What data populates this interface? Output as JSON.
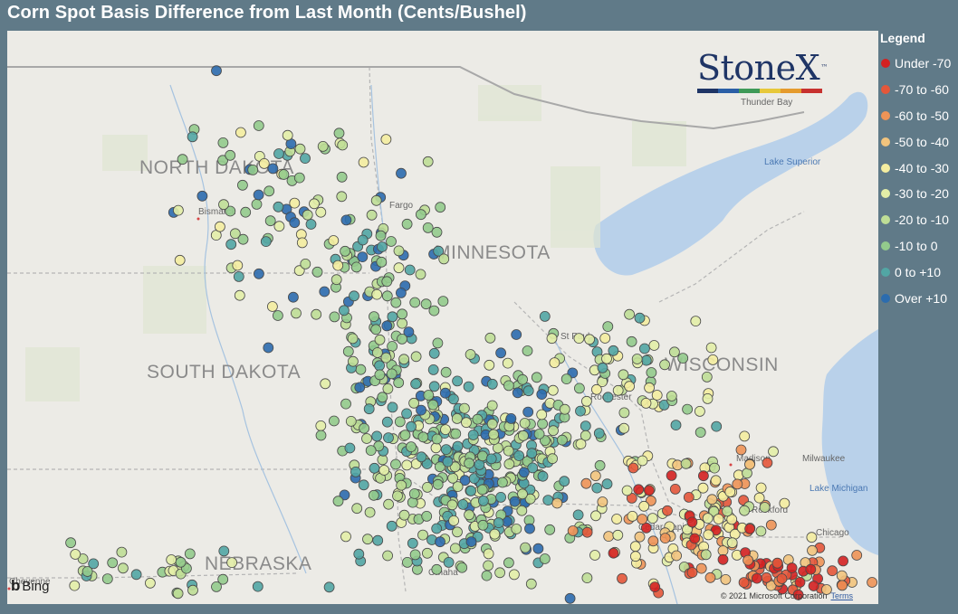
{
  "title": "Corn Spot Basis Difference from Last Month (Cents/Bushel)",
  "legend": {
    "title": "Legend",
    "items": [
      {
        "label": "Under -70",
        "color": "#d42121"
      },
      {
        "label": "-70 to -60",
        "color": "#e4573a"
      },
      {
        "label": "-60 to -50",
        "color": "#ee9457"
      },
      {
        "label": "-50 to -40",
        "color": "#f2c47d"
      },
      {
        "label": "-40 to -30",
        "color": "#f4eda0"
      },
      {
        "label": "-30 to -20",
        "color": "#e3eea7"
      },
      {
        "label": "-20 to -10",
        "color": "#bfde96"
      },
      {
        "label": "-10 to 0",
        "color": "#93cb8c"
      },
      {
        "label": "0 to +10",
        "color": "#52a6a4"
      },
      {
        "label": "Over +10",
        "color": "#2c6cae"
      }
    ]
  },
  "logo": {
    "text": "StoneX",
    "tm": "™",
    "bar_colors": [
      "#1f3566",
      "#2b5fa6",
      "#3f9a58",
      "#e7c83a",
      "#e59b2d",
      "#c7312f"
    ]
  },
  "map_labels": {
    "states": [
      "NORTH DAKOTA",
      "MINNESOTA",
      "SOUTH DAKOTA",
      "WISCONSIN",
      "NEBRASKA"
    ],
    "cities": [
      "Bismarck",
      "Fargo",
      "St Paul",
      "Rochester",
      "Madison",
      "Milwaukee",
      "Rockford",
      "Cedar Rapids",
      "Chicago",
      "Omaha",
      "Cheyenne",
      "Thunder Bay"
    ],
    "water": [
      "Lake Superior",
      "Lake Michigan"
    ]
  },
  "attribution": {
    "bing": "Bing",
    "copyright": "© 2021 Microsoft Corporation",
    "terms": "Terms"
  }
}
